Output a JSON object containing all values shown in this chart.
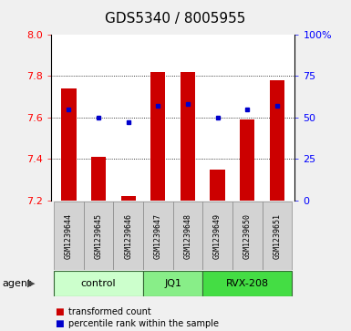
{
  "title": "GDS5340 / 8005955",
  "samples": [
    "GSM1239644",
    "GSM1239645",
    "GSM1239646",
    "GSM1239647",
    "GSM1239648",
    "GSM1239649",
    "GSM1239650",
    "GSM1239651"
  ],
  "red_values": [
    7.74,
    7.41,
    7.22,
    7.82,
    7.82,
    7.35,
    7.59,
    7.78
  ],
  "blue_values": [
    55,
    50,
    47,
    57,
    58,
    50,
    55,
    57
  ],
  "baseline": 7.2,
  "ylim": [
    7.2,
    8.0
  ],
  "y_left_ticks": [
    7.2,
    7.4,
    7.6,
    7.8,
    8.0
  ],
  "y_right_ticks": [
    0,
    25,
    50,
    75,
    100
  ],
  "y_right_labels": [
    "0",
    "25",
    "50",
    "75",
    "100%"
  ],
  "groups": [
    {
      "label": "control",
      "indices": [
        0,
        1,
        2
      ],
      "color": "#ccffcc"
    },
    {
      "label": "JQ1",
      "indices": [
        3,
        4
      ],
      "color": "#88ee88"
    },
    {
      "label": "RVX-208",
      "indices": [
        5,
        6,
        7
      ],
      "color": "#44dd44"
    }
  ],
  "bar_color": "#cc0000",
  "dot_color": "#0000cc",
  "bar_width": 0.5,
  "background_color": "#f0f0f0",
  "plot_bg_color": "#ffffff",
  "agent_label": "agent",
  "legend_red": "transformed count",
  "legend_blue": "percentile rank within the sample",
  "title_fontsize": 11,
  "tick_fontsize": 8,
  "label_fontsize": 8,
  "sample_fontsize": 6,
  "group_fontsize": 8
}
